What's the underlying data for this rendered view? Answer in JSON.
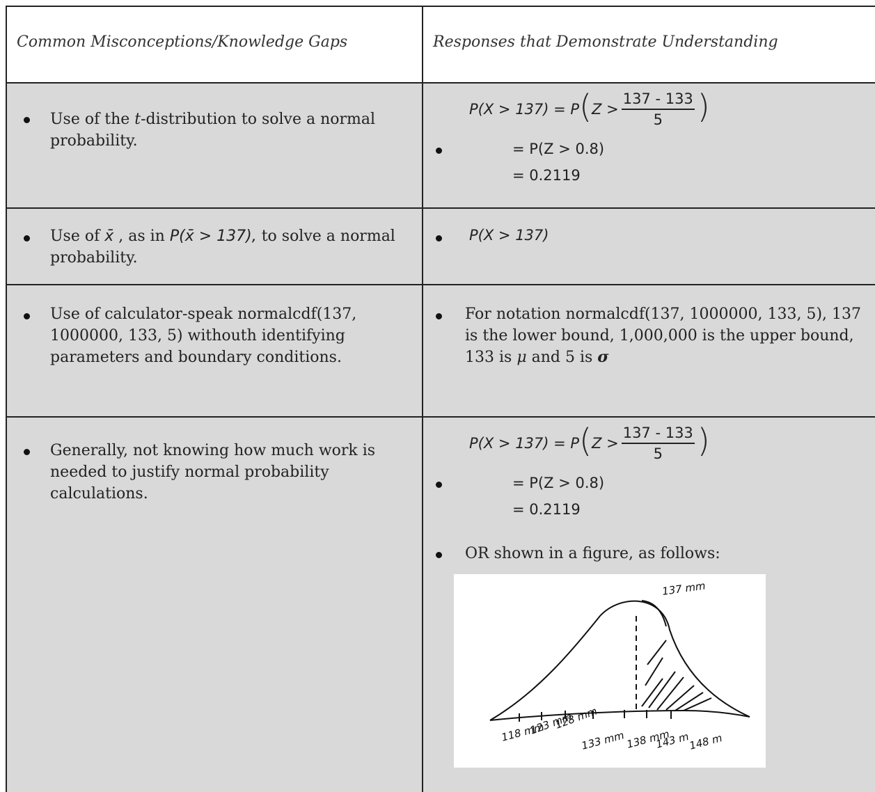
{
  "table": {
    "headers": [
      "Common Misconceptions/Knowledge Gaps",
      "Responses that Demonstrate Understanding"
    ],
    "rows": [
      {
        "misconception": [
          "Use of the ",
          "t",
          "-distribution to solve a normal probability."
        ],
        "response": {
          "line1": {
            "lhs": "P(X > 137) = P",
            "open": "(",
            "z": "Z >",
            "numerator": "137 - 133",
            "denominator": "5",
            "close": ")"
          },
          "line2": "= P(Z > 0.8)",
          "line3": "= 0.2119"
        }
      },
      {
        "misconception": [
          "Use of ",
          "x̄",
          " , as in ",
          "P(x̄ > 137),",
          " to solve a normal probability."
        ],
        "response": "P(X > 137)"
      },
      {
        "misconception": "Use of calculator-speak normalcdf(137, 1000000, 133, 5) withouth identifying parameters and boundary conditions.",
        "response": [
          "For notation normalcdf(137, 1000000, 133, 5), 137 is the lower bound, 1,000,000 is the upper bound, 133 is ",
          "μ",
          " and 5 is ",
          "σ"
        ]
      },
      {
        "misconception": "Generally, not knowing how much work is needed to justify normal probability calculations.",
        "response": {
          "line1": {
            "lhs": "P(X > 137) = P",
            "open": "(",
            "z": "Z >",
            "numerator": "137 - 133",
            "denominator": "5",
            "close": ")"
          },
          "line2": "= P(Z > 0.8)",
          "line3": "= 0.2119",
          "figure_caption": "OR shown in a figure, as follows:",
          "figure": {
            "peak_label": "137 mm",
            "axis_labels": [
              "118 mm",
              "123 mm",
              "128 mm",
              "133 mm",
              "138 mm",
              "143 m",
              "148 m"
            ]
          }
        }
      }
    ]
  }
}
